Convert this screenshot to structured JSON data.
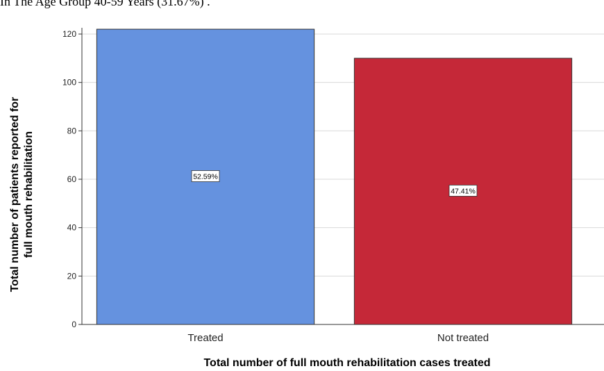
{
  "caption": "In The Age Group 40-59 Years (31.67%) .",
  "chart_data": {
    "type": "bar",
    "categories": [
      "Treated",
      "Not treated"
    ],
    "values": [
      122,
      110
    ],
    "data_labels": [
      "52.59%",
      "47.41%"
    ],
    "colors": [
      "#6592df",
      "#c52838"
    ],
    "xlabel": "Total number of full mouth rehabilitation cases treated",
    "ylabel_lines": [
      "Total number of patients reported for",
      "full mouth rehabilitation"
    ],
    "ylim": [
      0,
      120
    ],
    "yticks": [
      "0",
      "20",
      "40",
      "60",
      "80",
      "100",
      "120"
    ],
    "grid": true
  }
}
